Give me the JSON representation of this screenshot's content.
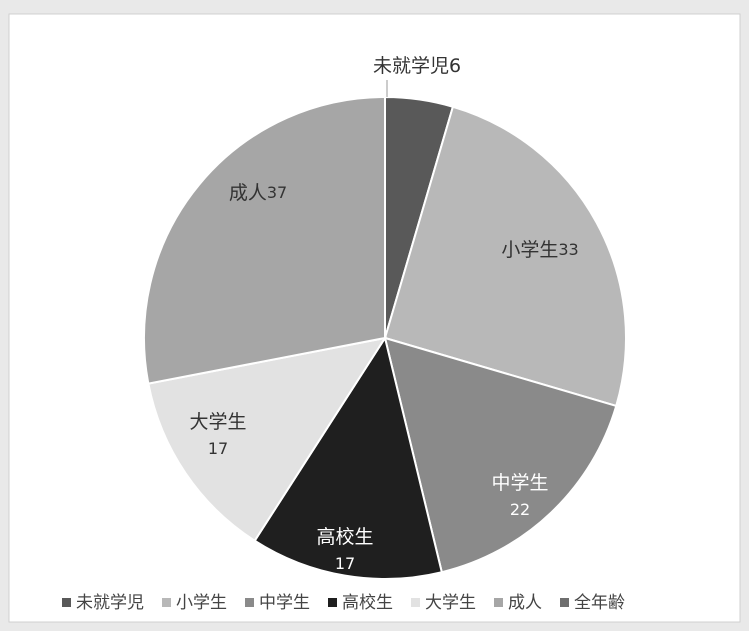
{
  "chart_data": {
    "type": "pie",
    "categories": [
      "未就学児",
      "小学生",
      "中学生",
      "高校生",
      "大学生",
      "成人",
      "全年齢"
    ],
    "values": [
      6,
      33,
      22,
      17,
      17,
      37,
      0
    ],
    "colors": [
      "#595959",
      "#b8b8b8",
      "#8a8a8a",
      "#1f1f1f",
      "#e2e2e2",
      "#a6a6a6",
      "#6e6e6e"
    ],
    "legend": "bottom"
  }
}
